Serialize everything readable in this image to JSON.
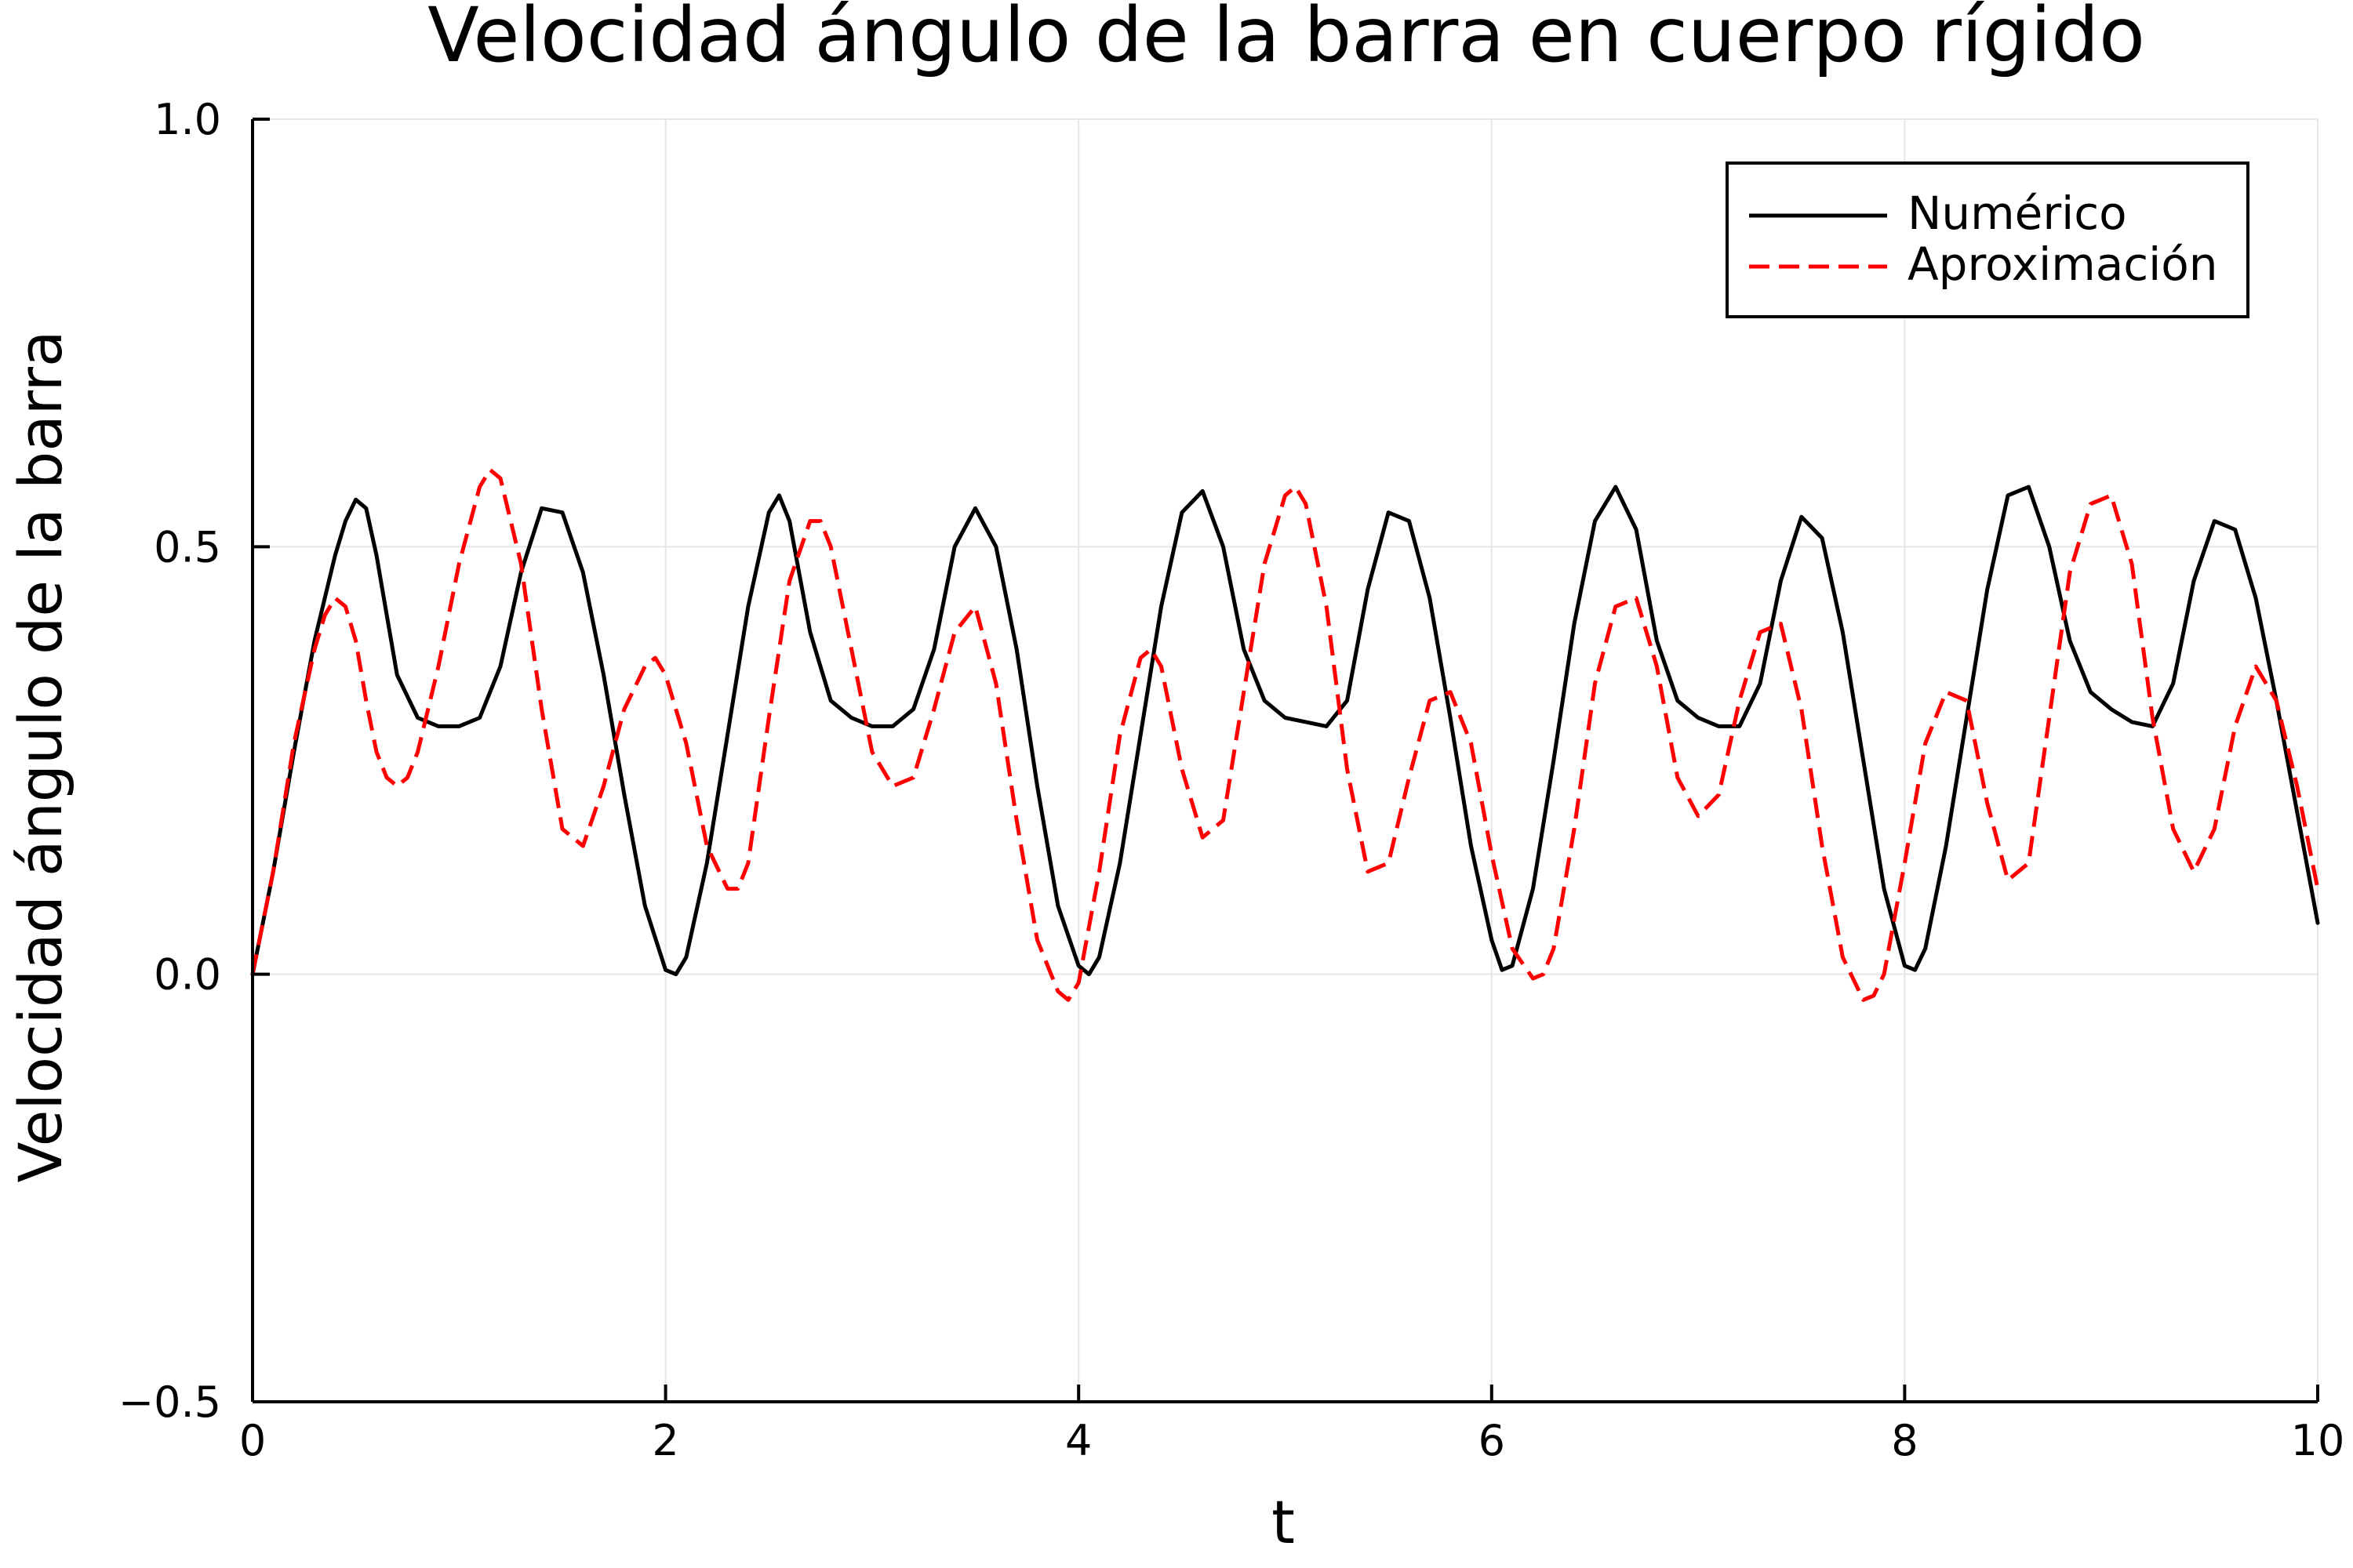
{
  "chart_data": {
    "type": "line",
    "title": "Velocidad ángulo de la barra en cuerpo rígido",
    "xlabel": "t",
    "ylabel": "Velocidad ángulo de la barra",
    "xlim": [
      0,
      10
    ],
    "ylim": [
      -0.5,
      1.0
    ],
    "xticks": [
      0,
      2,
      4,
      6,
      8,
      10
    ],
    "xtick_labels": [
      "0",
      "2",
      "4",
      "6",
      "8",
      "10"
    ],
    "yticks": [
      -0.5,
      0.0,
      0.5,
      1.0
    ],
    "ytick_labels": [
      "−0.5",
      "0.0",
      "0.5",
      "1.0"
    ],
    "grid": true,
    "legend_position": "top-right",
    "series": [
      {
        "name": "Numérico",
        "color": "#000000",
        "style": "solid",
        "x": [
          0,
          0.1,
          0.2,
          0.3,
          0.4,
          0.45,
          0.5,
          0.55,
          0.6,
          0.65,
          0.7,
          0.8,
          0.9,
          1.0,
          1.1,
          1.2,
          1.3,
          1.4,
          1.5,
          1.6,
          1.7,
          1.8,
          1.9,
          2.0,
          2.05,
          2.1,
          2.2,
          2.3,
          2.4,
          2.5,
          2.55,
          2.6,
          2.7,
          2.8,
          2.9,
          3.0,
          3.1,
          3.2,
          3.3,
          3.4,
          3.5,
          3.6,
          3.7,
          3.8,
          3.9,
          4.0,
          4.05,
          4.1,
          4.2,
          4.3,
          4.4,
          4.5,
          4.6,
          4.7,
          4.8,
          4.9,
          5.0,
          5.1,
          5.2,
          5.3,
          5.4,
          5.5,
          5.6,
          5.7,
          5.8,
          5.9,
          6.0,
          6.05,
          6.1,
          6.2,
          6.3,
          6.4,
          6.5,
          6.6,
          6.7,
          6.8,
          6.9,
          7.0,
          7.1,
          7.2,
          7.3,
          7.4,
          7.5,
          7.6,
          7.7,
          7.8,
          7.9,
          8.0,
          8.05,
          8.1,
          8.2,
          8.3,
          8.4,
          8.5,
          8.6,
          8.7,
          8.8,
          8.9,
          9.0,
          9.1,
          9.2,
          9.3,
          9.4,
          9.5,
          9.6,
          9.7,
          9.8,
          9.9,
          10.0
        ],
        "y": [
          0.0,
          0.12,
          0.26,
          0.39,
          0.49,
          0.53,
          0.555,
          0.545,
          0.49,
          0.42,
          0.35,
          0.3,
          0.29,
          0.29,
          0.3,
          0.36,
          0.47,
          0.545,
          0.54,
          0.47,
          0.35,
          0.21,
          0.08,
          0.005,
          0.0,
          0.02,
          0.13,
          0.28,
          0.43,
          0.54,
          0.56,
          0.53,
          0.4,
          0.32,
          0.3,
          0.29,
          0.29,
          0.31,
          0.38,
          0.5,
          0.545,
          0.5,
          0.38,
          0.22,
          0.08,
          0.01,
          0.0,
          0.02,
          0.13,
          0.28,
          0.43,
          0.54,
          0.565,
          0.5,
          0.38,
          0.32,
          0.3,
          0.295,
          0.29,
          0.32,
          0.45,
          0.54,
          0.53,
          0.44,
          0.3,
          0.15,
          0.04,
          0.005,
          0.01,
          0.1,
          0.25,
          0.41,
          0.53,
          0.57,
          0.52,
          0.39,
          0.32,
          0.3,
          0.29,
          0.29,
          0.34,
          0.46,
          0.535,
          0.51,
          0.4,
          0.25,
          0.1,
          0.01,
          0.005,
          0.03,
          0.15,
          0.3,
          0.45,
          0.56,
          0.57,
          0.5,
          0.39,
          0.33,
          0.31,
          0.295,
          0.29,
          0.34,
          0.46,
          0.53,
          0.52,
          0.44,
          0.32,
          0.19,
          0.06
        ]
      },
      {
        "name": "Aproximación",
        "color": "#ff0000",
        "style": "dashed",
        "x": [
          0,
          0.1,
          0.2,
          0.3,
          0.35,
          0.4,
          0.45,
          0.5,
          0.55,
          0.6,
          0.65,
          0.7,
          0.75,
          0.8,
          0.9,
          1.0,
          1.1,
          1.15,
          1.2,
          1.3,
          1.4,
          1.5,
          1.6,
          1.7,
          1.8,
          1.9,
          1.95,
          2.0,
          2.1,
          2.2,
          2.3,
          2.35,
          2.4,
          2.5,
          2.6,
          2.7,
          2.75,
          2.8,
          2.9,
          3.0,
          3.1,
          3.2,
          3.3,
          3.4,
          3.5,
          3.6,
          3.7,
          3.8,
          3.9,
          3.95,
          4.0,
          4.1,
          4.2,
          4.3,
          4.35,
          4.4,
          4.5,
          4.6,
          4.7,
          4.8,
          4.9,
          5.0,
          5.05,
          5.1,
          5.2,
          5.3,
          5.4,
          5.5,
          5.6,
          5.7,
          5.8,
          5.9,
          6.0,
          6.1,
          6.2,
          6.25,
          6.3,
          6.4,
          6.5,
          6.6,
          6.7,
          6.8,
          6.9,
          7.0,
          7.1,
          7.2,
          7.3,
          7.4,
          7.5,
          7.6,
          7.7,
          7.8,
          7.85,
          7.9,
          8.0,
          8.1,
          8.2,
          8.3,
          8.4,
          8.5,
          8.6,
          8.7,
          8.8,
          8.9,
          9.0,
          9.1,
          9.2,
          9.3,
          9.4,
          9.5,
          9.6,
          9.7,
          9.8,
          9.9,
          10.0
        ],
        "y": [
          0.0,
          0.12,
          0.27,
          0.38,
          0.42,
          0.44,
          0.43,
          0.39,
          0.32,
          0.26,
          0.23,
          0.22,
          0.23,
          0.26,
          0.36,
          0.48,
          0.57,
          0.59,
          0.58,
          0.48,
          0.31,
          0.17,
          0.15,
          0.22,
          0.31,
          0.36,
          0.37,
          0.35,
          0.27,
          0.15,
          0.1,
          0.1,
          0.13,
          0.3,
          0.46,
          0.53,
          0.53,
          0.5,
          0.38,
          0.26,
          0.22,
          0.23,
          0.31,
          0.4,
          0.43,
          0.34,
          0.18,
          0.04,
          -0.02,
          -0.03,
          -0.01,
          0.12,
          0.28,
          0.37,
          0.38,
          0.36,
          0.24,
          0.16,
          0.18,
          0.33,
          0.48,
          0.56,
          0.57,
          0.55,
          0.43,
          0.24,
          0.12,
          0.13,
          0.23,
          0.32,
          0.33,
          0.27,
          0.14,
          0.03,
          -0.005,
          0.0,
          0.03,
          0.17,
          0.34,
          0.43,
          0.44,
          0.36,
          0.23,
          0.185,
          0.21,
          0.32,
          0.4,
          0.41,
          0.31,
          0.15,
          0.02,
          -0.03,
          -0.025,
          0.0,
          0.13,
          0.27,
          0.33,
          0.32,
          0.2,
          0.11,
          0.13,
          0.3,
          0.47,
          0.55,
          0.56,
          0.48,
          0.3,
          0.17,
          0.12,
          0.17,
          0.29,
          0.36,
          0.32,
          0.22,
          0.1
        ]
      }
    ]
  }
}
